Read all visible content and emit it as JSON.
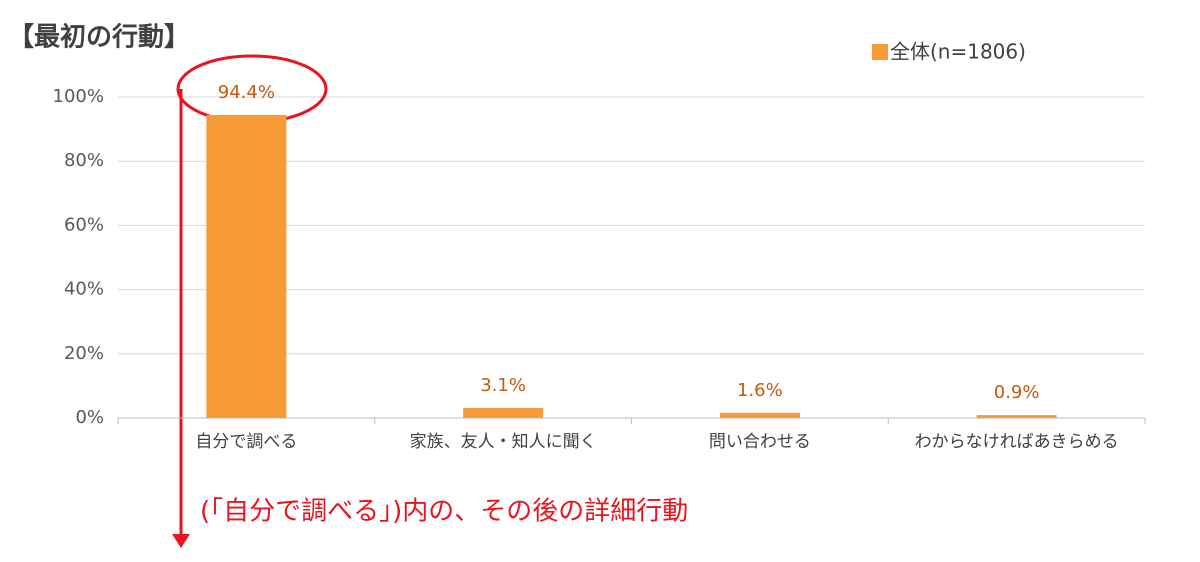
{
  "chart_data": {
    "type": "bar",
    "title": "【最初の行動】",
    "categories": [
      "自分で調べる",
      "家族、友人・知人に聞く",
      "問い合わせる",
      "わからなければあきらめる"
    ],
    "series": [
      {
        "name": "全体(n=1806)",
        "color": "#f89b36",
        "values": [
          94.4,
          3.1,
          1.6,
          0.9
        ],
        "value_labels": [
          "94.4%",
          "3.1%",
          "1.6%",
          "0.9%"
        ]
      }
    ],
    "ylim": [
      0,
      100
    ],
    "yticks": [
      {
        "value": 0,
        "label": "0%"
      },
      {
        "value": 20,
        "label": "20%"
      },
      {
        "value": 40,
        "label": "40%"
      },
      {
        "value": 60,
        "label": "60%"
      },
      {
        "value": 80,
        "label": "80%"
      },
      {
        "value": 100,
        "label": "100%"
      }
    ],
    "grid": true,
    "legend": "top-right",
    "annotation": "(「自分で調べる」)内の、その後の詳細行動"
  }
}
